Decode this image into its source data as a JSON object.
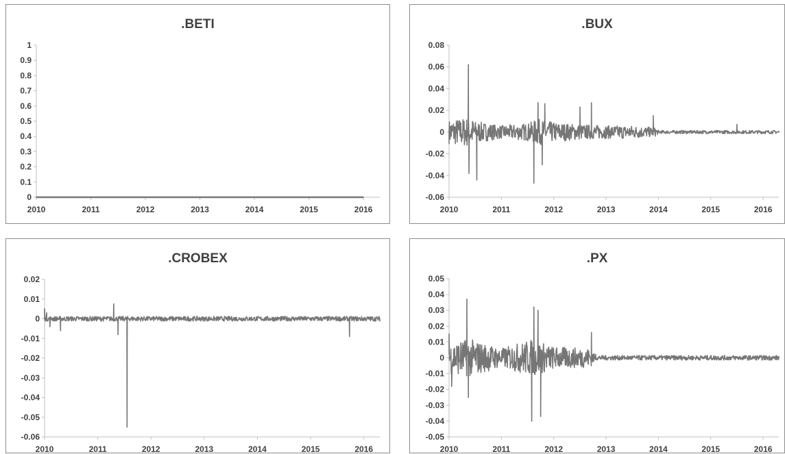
{
  "chart_data": [
    {
      "type": "line",
      "title": ".BETI",
      "x": [
        2010,
        2011,
        2012,
        2013,
        2014,
        2015,
        2016
      ],
      "xticks": [
        "2010",
        "2011",
        "2012",
        "2013",
        "2014",
        "2015",
        "2016"
      ],
      "xlim": [
        2010,
        2016.3
      ],
      "ylim": [
        0,
        1
      ],
      "yticks": [
        "0",
        "0.1",
        "0.2",
        "0.3",
        "0.4",
        "0.5",
        "0.6",
        "0.7",
        "0.8",
        "0.9",
        "1"
      ],
      "ytick_values": [
        0,
        0.1,
        0.2,
        0.3,
        0.4,
        0.5,
        0.6,
        0.7,
        0.8,
        0.9,
        1
      ],
      "series": [
        {
          "values": [
            0,
            0,
            0,
            0,
            0,
            0,
            0
          ],
          "color": "#767676",
          "volatility": []
        }
      ]
    },
    {
      "type": "line",
      "title": ".BUX",
      "x": [
        2010.0,
        2010.05,
        2010.37,
        2010.38,
        2010.53,
        2010.54,
        2011.62,
        2011.7,
        2011.78,
        2011.83,
        2012.5,
        2012.72,
        2013.9,
        2014.0,
        2015.5,
        2016.3
      ],
      "xticks": [
        "2010",
        "2011",
        "2012",
        "2013",
        "2014",
        "2015",
        "2016"
      ],
      "xlim": [
        2010,
        2016.3
      ],
      "ylim": [
        -0.06,
        0.08
      ],
      "yticks": [
        "-0.06",
        "-0.04",
        "-0.02",
        "0",
        "0.02",
        "0.04",
        "0.06",
        "0.08"
      ],
      "ytick_values": [
        -0.06,
        -0.04,
        -0.02,
        0,
        0.02,
        0.04,
        0.06,
        0.08
      ],
      "series": [
        {
          "values": [
            0,
            0,
            0.062,
            -0.038,
            -0.044,
            0,
            -0.047,
            0.027,
            -0.03,
            0.026,
            0.023,
            0.027,
            0.015,
            0,
            0.007,
            0
          ],
          "color": "#767676",
          "volatility": [
            [
              2010.0,
              0.011
            ],
            [
              2010.4,
              0.014
            ],
            [
              2010.5,
              0.01
            ],
            [
              2011.0,
              0.006
            ],
            [
              2011.5,
              0.008
            ],
            [
              2011.7,
              0.012
            ],
            [
              2012.0,
              0.009
            ],
            [
              2012.5,
              0.007
            ],
            [
              2013.0,
              0.006
            ],
            [
              2013.5,
              0.006
            ],
            [
              2013.95,
              0.004
            ],
            [
              2014.0,
              0.0015
            ],
            [
              2016.3,
              0.0015
            ]
          ]
        }
      ]
    },
    {
      "type": "line",
      "title": ".CROBEX",
      "x": [
        2010.0,
        2010.04,
        2010.1,
        2010.3,
        2011.3,
        2011.38,
        2011.55,
        2011.6,
        2015.73,
        2015.8,
        2016.3
      ],
      "xticks": [
        "2010",
        "2011",
        "2012",
        "2013",
        "2014",
        "2015",
        "2016"
      ],
      "xlim": [
        2010,
        2016.3
      ],
      "ylim": [
        -0.06,
        0.02
      ],
      "yticks": [
        "-0.06",
        "-0.05",
        "-0.04",
        "-0.03",
        "-0.02",
        "-0.01",
        "0",
        "0.01",
        "0.02"
      ],
      "ytick_values": [
        -0.06,
        -0.05,
        -0.04,
        -0.03,
        -0.02,
        -0.01,
        0,
        0.01,
        0.02
      ],
      "series": [
        {
          "values": [
            0.005,
            0.003,
            -0.004,
            -0.006,
            0.0075,
            -0.008,
            -0.055,
            0,
            -0.009,
            0,
            0
          ],
          "color": "#767676",
          "volatility": [
            [
              2010.0,
              0.0012
            ],
            [
              2016.3,
              0.0012
            ]
          ]
        }
      ]
    },
    {
      "type": "line",
      "title": ".PX",
      "x": [
        2010.0,
        2010.05,
        2010.34,
        2010.37,
        2011.58,
        2011.62,
        2011.7,
        2011.75,
        2012.72,
        2012.8,
        2016.3
      ],
      "xticks": [
        "2010",
        "2011",
        "2012",
        "2013",
        "2014",
        "2015",
        "2016"
      ],
      "xlim": [
        2010,
        2016.3
      ],
      "ylim": [
        -0.05,
        0.05
      ],
      "yticks": [
        "-0.05",
        "-0.04",
        "-0.03",
        "-0.02",
        "-0.01",
        "0",
        "0.01",
        "0.02",
        "0.03",
        "0.04",
        "0.05"
      ],
      "ytick_values": [
        -0.05,
        -0.04,
        -0.03,
        -0.02,
        -0.01,
        0,
        0.01,
        0.02,
        0.03,
        0.04,
        0.05
      ],
      "series": [
        {
          "values": [
            0.015,
            -0.018,
            0.037,
            -0.025,
            -0.04,
            0.032,
            0.03,
            -0.037,
            0.016,
            0.002,
            0
          ],
          "color": "#767676",
          "volatility": [
            [
              2010.0,
              0.01
            ],
            [
              2010.4,
              0.012
            ],
            [
              2011.0,
              0.006
            ],
            [
              2011.6,
              0.012
            ],
            [
              2012.0,
              0.007
            ],
            [
              2012.7,
              0.006
            ],
            [
              2012.8,
              0.0015
            ],
            [
              2016.3,
              0.0015
            ]
          ]
        }
      ]
    }
  ]
}
